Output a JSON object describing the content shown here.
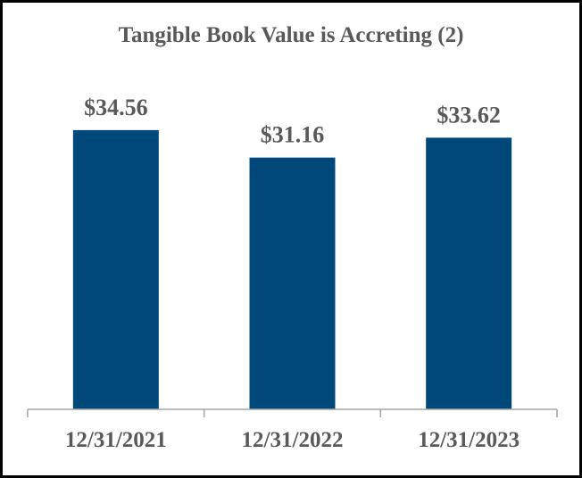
{
  "chart_data": {
    "type": "bar",
    "title": "Tangible Book Value is Accreting (2)",
    "categories": [
      "12/31/2021",
      "12/31/2022",
      "12/31/2023"
    ],
    "values": [
      34.56,
      31.16,
      33.62
    ],
    "value_labels": [
      "$34.56",
      "$31.16",
      "$33.62"
    ],
    "xlabel": "",
    "ylabel": "",
    "ylim": [
      0,
      42
    ],
    "grid": false,
    "legend": "none",
    "colors": {
      "bar": "#00487A",
      "label": "#595959",
      "axis": "#A6A6A6"
    }
  }
}
